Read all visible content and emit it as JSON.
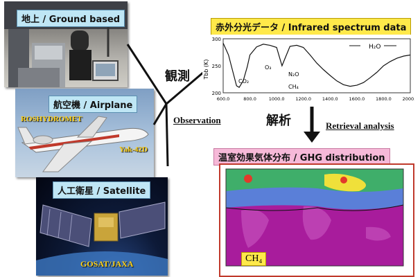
{
  "ground": {
    "label": "地上 / Ground based"
  },
  "airplane": {
    "label": "航空機 / Airplane",
    "operator": "ROSHYDROMET",
    "model": "Yak-42D"
  },
  "satellite": {
    "label": "人工衛星 / Satellite",
    "credit": "GOSAT/JAXA"
  },
  "observation": {
    "kanji": "観測",
    "english": "Observation"
  },
  "retrieval": {
    "kanji": "解析",
    "english": "Retrieval analysis"
  },
  "spectrum": {
    "title": "赤外分光データ / Infrared spectrum data",
    "ylabel": "Tbb (K)",
    "yticks": [
      "300",
      "250",
      "200"
    ],
    "xticks": [
      "600.0",
      "800.0",
      "1000.0",
      "1200.0",
      "1400.0",
      "1600.0",
      "1800.0",
      "2000.0"
    ],
    "labels": {
      "h2o": "H₂O",
      "o3": "O₃",
      "co2": "CO₂",
      "n2o": "N₂O",
      "ch4": "CH₄"
    }
  },
  "ghg": {
    "title": "温室効果気体分布 / GHG distribution",
    "species": "CH₄",
    "map_colors": {
      "low": "#a81c9c",
      "mid": "#5a7fd8",
      "high": "#f0e03a",
      "peak": "#e23a2a"
    }
  },
  "chart_data": {
    "type": "line",
    "title": "赤外分光データ / Infrared spectrum data",
    "xlabel": "",
    "ylabel": "Tbb (K)",
    "xlim": [
      600,
      2000
    ],
    "ylim": [
      200,
      300
    ],
    "x": [
      600,
      640,
      680,
      700,
      720,
      750,
      780,
      800,
      850,
      900,
      950,
      1000,
      1040,
      1060,
      1100,
      1150,
      1200,
      1250,
      1300,
      1350,
      1400,
      1450,
      1500,
      1550,
      1600,
      1650,
      1700,
      1750,
      1800,
      1850,
      1900,
      1950,
      2000
    ],
    "series": [
      {
        "values": [
          292,
          270,
          232,
          213,
          210,
          222,
          248,
          270,
          285,
          290,
          288,
          284,
          250,
          262,
          286,
          288,
          284,
          270,
          255,
          243,
          232,
          222,
          215,
          212,
          214,
          219,
          228,
          238,
          250,
          258,
          264,
          268,
          270
        ]
      }
    ]
  }
}
